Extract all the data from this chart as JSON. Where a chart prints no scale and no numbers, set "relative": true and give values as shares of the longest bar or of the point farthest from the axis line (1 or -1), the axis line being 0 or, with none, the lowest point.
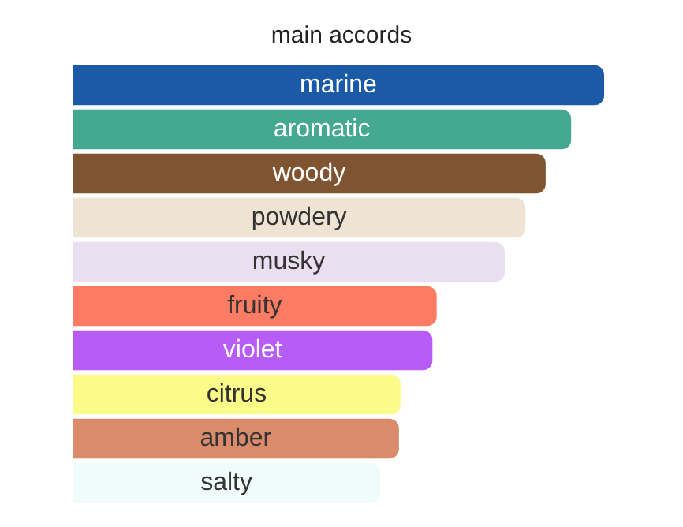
{
  "chart_data": {
    "type": "bar",
    "title": "main accords",
    "orientation": "horizontal",
    "relative": true,
    "categories": [
      "marine",
      "aromatic",
      "woody",
      "powdery",
      "musky",
      "fruity",
      "violet",
      "citrus",
      "amber",
      "salty"
    ],
    "values": [
      1,
      0.938,
      0.89,
      0.852,
      0.813,
      0.685,
      0.677,
      0.617,
      0.614,
      0.579
    ],
    "colors": [
      "#1a5aa6",
      "#45a890",
      "#7f5430",
      "#efe3d3",
      "#e9dff0",
      "#fc7b63",
      "#b85cf8",
      "#fbfb8a",
      "#d98b6c",
      "#effcf9"
    ]
  }
}
